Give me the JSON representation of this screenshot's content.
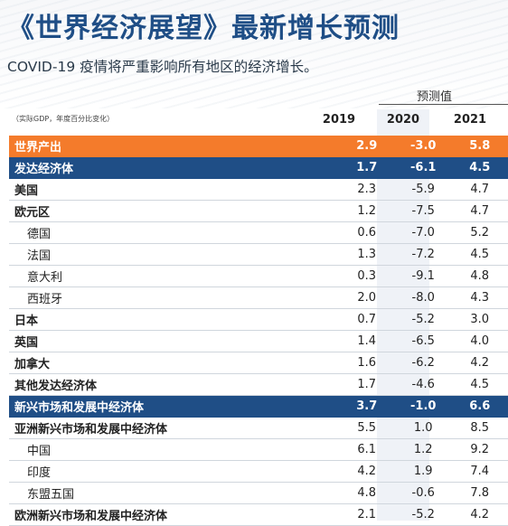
{
  "title": "《世界经济展望》最新增长预测",
  "subtitle": "COVID-19 疫情将严重影响所有地区的经济增长。",
  "projection_label": "预测值",
  "unit_note": "（实际GDP，年度百分比变化）",
  "years": [
    "2019",
    "2020",
    "2021"
  ],
  "rows": [
    {
      "name": "世界产出",
      "v2019": "2.9",
      "v2020": "-3.0",
      "v2021": "5.8",
      "style": "world"
    },
    {
      "name": "发达经济体",
      "v2019": "1.7",
      "v2020": "-6.1",
      "v2021": "4.5",
      "style": "group"
    },
    {
      "name": "美国",
      "v2019": "2.3",
      "v2020": "-5.9",
      "v2021": "4.7",
      "style": "bold"
    },
    {
      "name": "欧元区",
      "v2019": "1.2",
      "v2020": "-7.5",
      "v2021": "4.7",
      "style": "bold"
    },
    {
      "name": "德国",
      "v2019": "0.6",
      "v2020": "-7.0",
      "v2021": "5.2",
      "style": "sub"
    },
    {
      "name": "法国",
      "v2019": "1.3",
      "v2020": "-7.2",
      "v2021": "4.5",
      "style": "sub"
    },
    {
      "name": "意大利",
      "v2019": "0.3",
      "v2020": "-9.1",
      "v2021": "4.8",
      "style": "sub"
    },
    {
      "name": "西班牙",
      "v2019": "2.0",
      "v2020": "-8.0",
      "v2021": "4.3",
      "style": "sub"
    },
    {
      "name": "日本",
      "v2019": "0.7",
      "v2020": "-5.2",
      "v2021": "3.0",
      "style": "bold"
    },
    {
      "name": "英国",
      "v2019": "1.4",
      "v2020": "-6.5",
      "v2021": "4.0",
      "style": "bold"
    },
    {
      "name": "加拿大",
      "v2019": "1.6",
      "v2020": "-6.2",
      "v2021": "4.2",
      "style": "bold"
    },
    {
      "name": "其他发达经济体",
      "v2019": "1.7",
      "v2020": "-4.6",
      "v2021": "4.5",
      "style": "bold"
    },
    {
      "name": "新兴市场和发展中经济体",
      "v2019": "3.7",
      "v2020": "-1.0",
      "v2021": "6.6",
      "style": "group"
    },
    {
      "name": "亚洲新兴市场和发展中经济体",
      "v2019": "5.5",
      "v2020": "1.0",
      "v2021": "8.5",
      "style": "bold"
    },
    {
      "name": "中国",
      "v2019": "6.1",
      "v2020": "1.2",
      "v2021": "9.2",
      "style": "sub"
    },
    {
      "name": "印度",
      "v2019": "4.2",
      "v2020": "1.9",
      "v2021": "7.4",
      "style": "sub"
    },
    {
      "name": "东盟五国",
      "v2019": "4.8",
      "v2020": "-0.6",
      "v2021": "7.8",
      "style": "sub"
    },
    {
      "name": "欧洲新兴市场和发展中经济体",
      "v2019": "2.1",
      "v2020": "-5.2",
      "v2021": "4.2",
      "style": "bold"
    }
  ],
  "colors": {
    "world_row": "#f47b2b",
    "group_row": "#1f4e86",
    "title": "#1f4e86"
  }
}
